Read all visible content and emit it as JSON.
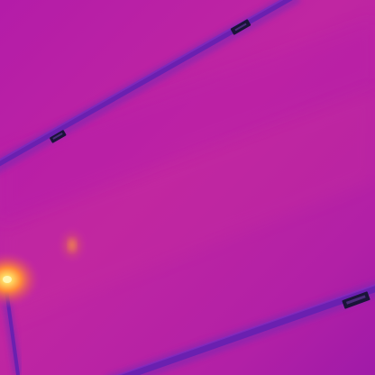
{
  "image": {
    "kind": "thermal-image",
    "palette": {
      "background_magenta": "#b51fa6",
      "background_warm": "#c42aa0",
      "background_deep": "#9a1aa8",
      "cable_core": "#6a20b0",
      "cable_dark": "#5015a0",
      "cable_highlight": "#8a2cc0",
      "clip_dark": "#1a1438",
      "hotspot_core": "#ffe27a",
      "hotspot_mid": "#ff9a3a",
      "hotspot_outer": "#e0506a",
      "warm_glow": "#e86a60"
    }
  }
}
